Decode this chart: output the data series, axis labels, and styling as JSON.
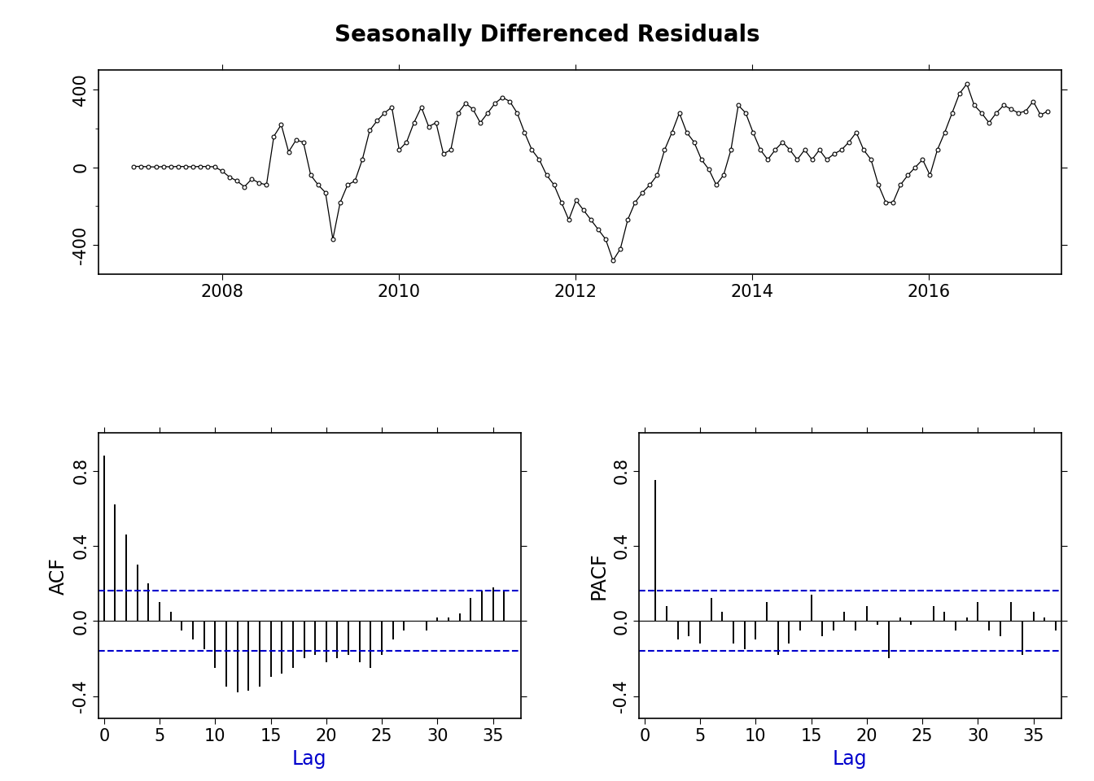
{
  "title": "Seasonally Differenced Residuals",
  "title_fontsize": 20,
  "title_fontweight": "bold",
  "background_color": "#ffffff",
  "ts_ylim": [
    -550,
    500
  ],
  "ts_yticks": [
    -400,
    0,
    400
  ],
  "ts_xticks": [
    2008,
    2010,
    2012,
    2014,
    2016
  ],
  "ts_xlim": [
    2006.6,
    2017.5
  ],
  "acf_values": [
    0.88,
    0.62,
    0.46,
    0.3,
    0.2,
    0.1,
    0.05,
    -0.05,
    -0.1,
    -0.15,
    -0.25,
    -0.35,
    -0.38,
    -0.37,
    -0.35,
    -0.3,
    -0.28,
    -0.25,
    -0.2,
    -0.18,
    -0.22,
    -0.2,
    -0.18,
    -0.22,
    -0.25,
    -0.18,
    -0.1,
    -0.05,
    0.0,
    -0.05,
    0.02,
    0.02,
    0.04,
    0.12,
    0.16,
    0.18,
    0.16
  ],
  "pacf_values": [
    0.75,
    0.08,
    -0.1,
    -0.08,
    -0.12,
    0.12,
    0.05,
    -0.12,
    -0.15,
    -0.1,
    0.1,
    -0.18,
    -0.12,
    -0.05,
    0.14,
    -0.08,
    -0.05,
    0.05,
    -0.05,
    0.08,
    -0.02,
    -0.2,
    0.02,
    -0.02,
    0.0,
    0.08,
    0.05,
    -0.05,
    0.02,
    0.1,
    -0.05,
    -0.08,
    0.1,
    -0.18,
    0.05,
    0.02,
    -0.05
  ],
  "ci_level": 0.16,
  "acf_ylim": [
    -0.52,
    1.0
  ],
  "acf_yticks": [
    -0.4,
    0.0,
    0.4,
    0.8
  ],
  "pacf_ylim": [
    -0.52,
    1.0
  ],
  "pacf_yticks": [
    -0.4,
    0.0,
    0.4,
    0.8
  ],
  "lag_xlim": [
    -0.5,
    37.5
  ],
  "lag_xticks": [
    0,
    5,
    10,
    15,
    20,
    25,
    30,
    35
  ],
  "ci_color": "#0000cc",
  "bar_color": "#000000",
  "line_color": "#000000",
  "ylabel_acf": "ACF",
  "ylabel_pacf": "PACF",
  "xlabel_lag": "Lag",
  "xlabel_color": "#0000cc",
  "tick_fontsize": 15,
  "label_fontsize": 17,
  "ts_tick_fontsize": 15
}
